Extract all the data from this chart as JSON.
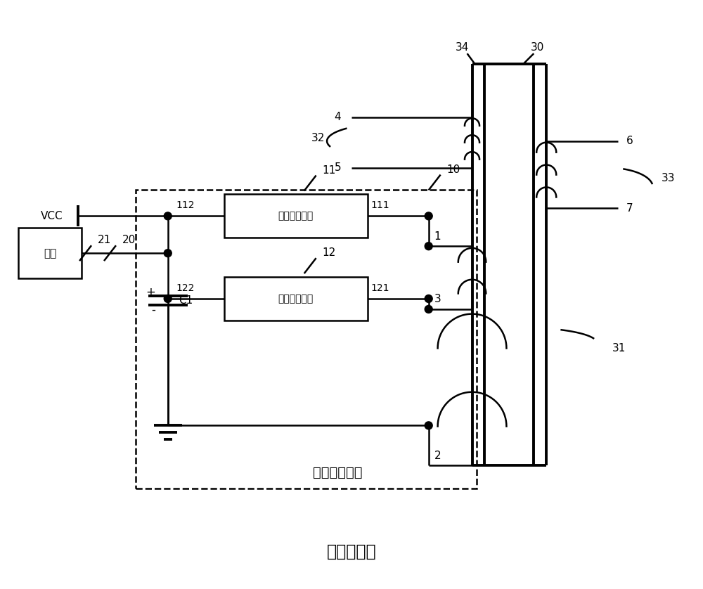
{
  "title": "变压器电路",
  "subtitle": "辅助绕组电路",
  "bg_color": "#ffffff",
  "lc": "#000000",
  "box1_label": "第一供电电路",
  "box2_label": "第二供电电路",
  "chip_label": "芯片",
  "n10": "10",
  "n11": "11",
  "n12": "12",
  "n20": "20",
  "n21": "21",
  "n30": "30",
  "n31": "31",
  "n32": "32",
  "n33": "33",
  "n34": "34",
  "n111": "111",
  "n112": "112",
  "n121": "121",
  "n122": "122",
  "n1": "1",
  "n2": "2",
  "n3": "3",
  "n4": "4",
  "n5": "5",
  "n6": "6",
  "n7": "7",
  "C1": "C1",
  "plus": "+",
  "minus": "-",
  "VCC": "VCC"
}
